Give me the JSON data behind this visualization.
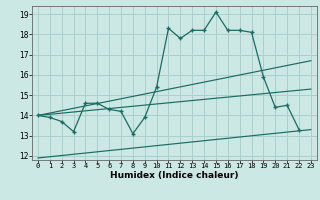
{
  "title": "",
  "xlabel": "Humidex (Indice chaleur)",
  "bg_color": "#cce8e4",
  "grid_color": "#aacfcc",
  "line_color": "#1a6b63",
  "xlim": [
    -0.5,
    23.5
  ],
  "ylim": [
    11.8,
    19.4
  ],
  "xticks": [
    0,
    1,
    2,
    3,
    4,
    5,
    6,
    7,
    8,
    9,
    10,
    11,
    12,
    13,
    14,
    15,
    16,
    17,
    18,
    19,
    20,
    21,
    22,
    23
  ],
  "yticks": [
    12,
    13,
    14,
    15,
    16,
    17,
    18,
    19
  ],
  "main_x": [
    0,
    1,
    2,
    3,
    4,
    5,
    6,
    7,
    8,
    9,
    10,
    11,
    12,
    13,
    14,
    15,
    16,
    17,
    18,
    19,
    20,
    21,
    22
  ],
  "main_y": [
    14.0,
    13.9,
    13.7,
    13.2,
    14.6,
    14.6,
    14.3,
    14.2,
    13.1,
    13.9,
    15.4,
    18.3,
    17.8,
    18.2,
    18.2,
    19.1,
    18.2,
    18.2,
    18.1,
    15.9,
    14.4,
    14.5,
    13.3
  ],
  "line1_x": [
    0,
    23
  ],
  "line1_y": [
    14.0,
    16.7
  ],
  "line2_x": [
    0,
    23
  ],
  "line2_y": [
    14.0,
    15.3
  ],
  "line3_x": [
    0,
    23
  ],
  "line3_y": [
    11.9,
    13.3
  ],
  "tick_fontsize": 5.0,
  "xlabel_fontsize": 6.5,
  "xlabel_fontweight": "bold"
}
